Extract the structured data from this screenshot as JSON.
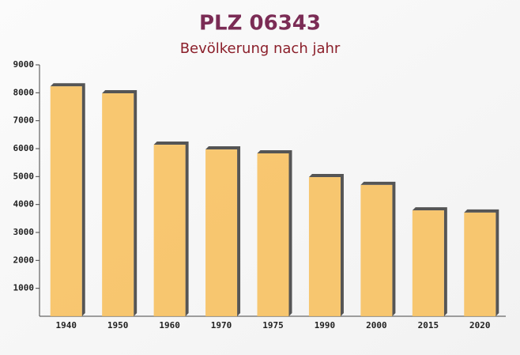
{
  "chart_data": {
    "type": "bar",
    "title": "PLZ 06343",
    "subtitle": "Bevölkerung nach jahr",
    "categories": [
      "1940",
      "1950",
      "1960",
      "1970",
      "1975",
      "1990",
      "2000",
      "2015",
      "2020"
    ],
    "values": [
      8230,
      7980,
      6140,
      5970,
      5830,
      4980,
      4700,
      3790,
      3710
    ],
    "color": "#f7c160",
    "ylim": [
      0,
      9000
    ],
    "yticks": [
      1000,
      2000,
      3000,
      4000,
      5000,
      6000,
      7000,
      8000,
      9000
    ]
  }
}
